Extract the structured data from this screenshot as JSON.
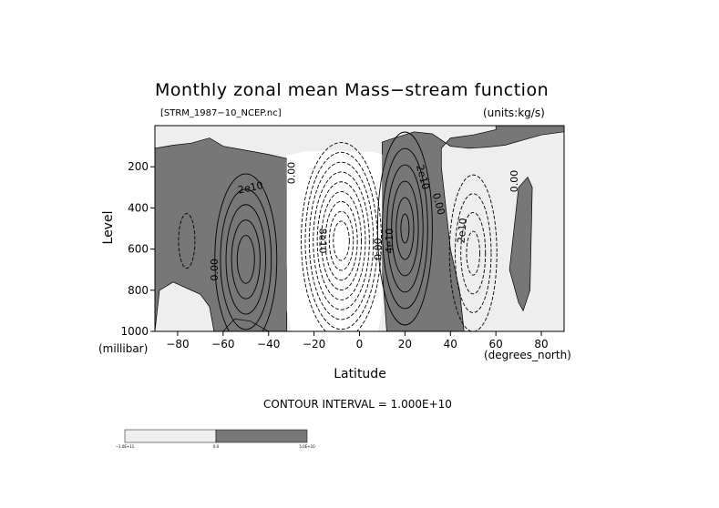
{
  "title": "Monthly zonal mean Mass−stream function",
  "file_label": "[STRM_1987−10_NCEP.nc]",
  "units_label": "(units:kg/s)",
  "contour_interval": "CONTOUR INTERVAL = 1.000E+10",
  "colors": {
    "shade": "#777777",
    "light": "#eeeeee",
    "white": "#ffffff",
    "ink": "#000000"
  },
  "chart_data": {
    "type": "contour",
    "title": "Monthly zonal mean Mass−stream function",
    "xlabel": "Latitude",
    "ylabel": "Level",
    "x_unit_label": "(degrees_north)",
    "y_unit_label": "(millibar)",
    "xlim": [
      -90,
      90
    ],
    "ylim": [
      1000,
      0
    ],
    "x_ticks": [
      -80,
      -60,
      -40,
      -20,
      0,
      20,
      40,
      60,
      80
    ],
    "x_tick_labels": [
      "−80",
      "−60",
      "−40",
      "−20",
      "0",
      "20",
      "40",
      "60",
      "80"
    ],
    "y_ticks": [
      200,
      400,
      600,
      800,
      1000
    ],
    "y_tick_labels": [
      "200",
      "400",
      "600",
      "800",
      "1000"
    ],
    "contour_interval": 10000000000.0,
    "contour_labels": [
      {
        "text": "2e10",
        "lat": -48,
        "lev": 300,
        "angle": -12
      },
      {
        "text": "0.00",
        "lat": -30,
        "lev": 230,
        "angle": -90
      },
      {
        "text": "0.00",
        "lat": -64,
        "lev": 700,
        "angle": -90
      },
      {
        "text": "8e10",
        "lat": -16,
        "lev": 560,
        "angle": 90
      },
      {
        "text": "0.00",
        "lat": 8,
        "lev": 600,
        "angle": -90
      },
      {
        "text": "4e10",
        "lat": 13,
        "lev": 560,
        "angle": -90
      },
      {
        "text": "2e10",
        "lat": 28,
        "lev": 250,
        "angle": 75
      },
      {
        "text": "0.00",
        "lat": 35,
        "lev": 380,
        "angle": 75
      },
      {
        "text": "2e10",
        "lat": 45,
        "lev": 510,
        "angle": -85
      },
      {
        "text": "0.00",
        "lat": 68,
        "lev": 270,
        "angle": -90
      }
    ],
    "cells": [
      {
        "sign": "positive",
        "center_lat": -50,
        "center_lev": 650,
        "max_multiple": 5
      },
      {
        "sign": "negative",
        "center_lat": -8,
        "center_lev": 550,
        "max_multiple": 9
      },
      {
        "sign": "positive",
        "center_lat": 20,
        "center_lev": 500,
        "max_multiple": 6
      },
      {
        "sign": "negative",
        "center_lat": 50,
        "center_lev": 600,
        "max_multiple": 4
      },
      {
        "sign": "negative",
        "center_lat": -76,
        "center_lev": 540,
        "max_multiple": 1
      }
    ],
    "colorbar": {
      "labels": [
        "−1.0E+11",
        "0.0",
        "5.0E+10"
      ]
    }
  }
}
